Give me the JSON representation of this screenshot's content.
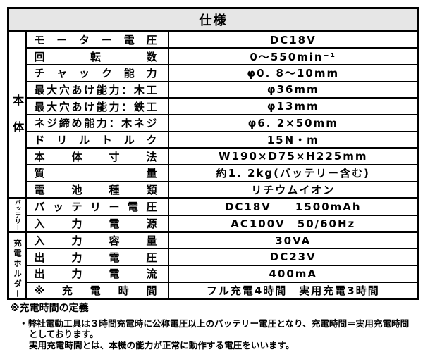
{
  "header": {
    "title": "仕様"
  },
  "table": {
    "sections": [
      {
        "label": "本体",
        "rowspan": 10
      },
      {
        "label": "バッテリー",
        "rowspan": 2
      },
      {
        "label": "充電ホルダー",
        "rowspan": 4
      }
    ],
    "rows": [
      {
        "label": "モーター電圧",
        "value": "DC18V"
      },
      {
        "label": "回転数",
        "value": "0～550min⁻¹"
      },
      {
        "label": "チャック能力",
        "value": "φ0. 8～10mm"
      },
      {
        "label": "最大穴あけ能力：木工",
        "value": "φ36mm"
      },
      {
        "label": "最大穴あけ能力：鉄工",
        "value": "φ13mm"
      },
      {
        "label": "ネジ締め能力：木ネジ",
        "value": "φ6. 2×50mm"
      },
      {
        "label": "ドリルトルク",
        "value": "15N・m"
      },
      {
        "label": "本体寸法",
        "value": "W190×D75×H225mm"
      },
      {
        "label": "質量",
        "value": "約1. 2kg(バッテリー含む)"
      },
      {
        "label": "電池種類",
        "value": "リチウムイオン"
      },
      {
        "label": "バッテリー電圧",
        "value": "DC18V　　1500mAh"
      },
      {
        "label": "入力電源",
        "value": "AC100V　50/60Hz"
      },
      {
        "label": "入力容量",
        "value": "30VA"
      },
      {
        "label": "出力電圧",
        "value": "DC23V"
      },
      {
        "label": "出力電流",
        "value": "400mA"
      },
      {
        "label": "※充電時間",
        "value": "フル充電4時間　実用充電3時間"
      }
    ]
  },
  "notes": {
    "title": "※充電時間の定義",
    "line1": "・弊社電動工具は３時間充電時に公称電圧以上のバッテリー電圧となり、充電時間＝実用充電時間",
    "line2": "としております。",
    "line3": "実用充電時間とは、本機の能力が正常に動作する電圧をいいます。"
  },
  "colors": {
    "header_bg": "#e6e6e6",
    "border": "#000000",
    "text": "#000000"
  }
}
